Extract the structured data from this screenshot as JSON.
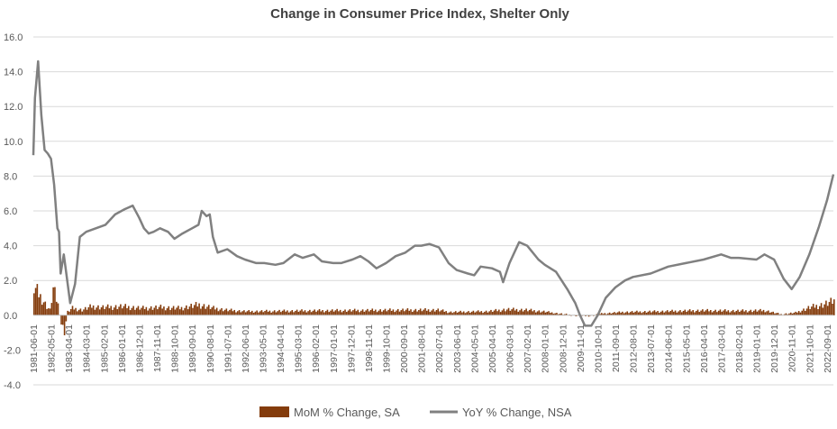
{
  "chart_data": {
    "type": "bar+line",
    "title": "Change in Consumer Price Index, Shelter Only",
    "xlabel": "",
    "ylabel": "",
    "ylim": [
      -4.0,
      16.0
    ],
    "ytick_step": 2.0,
    "y_ticks": [
      "16.0",
      "14.0",
      "12.0",
      "10.0",
      "8.0",
      "6.0",
      "4.0",
      "2.0",
      "0.0",
      "-2.0",
      "-4.0"
    ],
    "x_tick_labels": [
      "1981-06-01",
      "1982-05-01",
      "1983-04-01",
      "1984-03-01",
      "1985-02-01",
      "1986-01-01",
      "1986-12-01",
      "1987-11-01",
      "1988-10-01",
      "1989-09-01",
      "1990-08-01",
      "1991-07-01",
      "1992-06-01",
      "1993-05-01",
      "1994-04-01",
      "1995-03-01",
      "1996-02-01",
      "1997-01-01",
      "1997-12-01",
      "1998-11-01",
      "1999-10-01",
      "2000-09-01",
      "2001-08-01",
      "2002-07-01",
      "2003-06-01",
      "2004-05-01",
      "2005-04-01",
      "2006-03-01",
      "2007-02-01",
      "2008-01-01",
      "2008-12-01",
      "2009-11-01",
      "2010-10-01",
      "2011-09-01",
      "2012-08-01",
      "2013-07-01",
      "2014-06-01",
      "2015-05-01",
      "2016-04-01",
      "2017-03-01",
      "2018-02-01",
      "2019-01-01",
      "2019-12-01",
      "2020-11-01",
      "2021-10-01",
      "2022-09-01"
    ],
    "x_range": [
      "1981-06",
      "2023-01"
    ],
    "grid": true,
    "legend_position": "bottom",
    "series": [
      {
        "name": "MoM % Change, SA",
        "kind": "bar",
        "color": "#843C0C",
        "points": [
          [
            "1981-06",
            1.6
          ],
          [
            "1981-09",
            1.2
          ],
          [
            "1981-12",
            0.8
          ],
          [
            "1982-02",
            0.5
          ],
          [
            "1982-04",
            0.3
          ],
          [
            "1982-06",
            1.5
          ],
          [
            "1982-09",
            0.6
          ],
          [
            "1982-11",
            -0.5
          ],
          [
            "1983-01",
            -0.9
          ],
          [
            "1983-03",
            0.2
          ],
          [
            "1983-06",
            0.4
          ],
          [
            "1983-12",
            0.3
          ],
          [
            "1984-06",
            0.5
          ],
          [
            "1985-01",
            0.45
          ],
          [
            "1986-01",
            0.5
          ],
          [
            "1987-01",
            0.4
          ],
          [
            "1988-01",
            0.45
          ],
          [
            "1989-01",
            0.4
          ],
          [
            "1990-01",
            0.6
          ],
          [
            "1990-10",
            0.4
          ],
          [
            "1991-06",
            0.3
          ],
          [
            "1992-06",
            0.22
          ],
          [
            "1995-01",
            0.25
          ],
          [
            "2001-01",
            0.3
          ],
          [
            "2002-06",
            0.3
          ],
          [
            "2003-01",
            0.18
          ],
          [
            "2005-01",
            0.22
          ],
          [
            "2006-01",
            0.33
          ],
          [
            "2007-01",
            0.3
          ],
          [
            "2008-01",
            0.2
          ],
          [
            "2009-01",
            0.05
          ],
          [
            "2009-11",
            -0.05
          ],
          [
            "2010-06",
            -0.02
          ],
          [
            "2011-01",
            0.1
          ],
          [
            "2012-01",
            0.18
          ],
          [
            "2014-01",
            0.22
          ],
          [
            "2016-01",
            0.27
          ],
          [
            "2018-01",
            0.25
          ],
          [
            "2019-06",
            0.27
          ],
          [
            "2020-04",
            0.05
          ],
          [
            "2021-01",
            0.15
          ],
          [
            "2021-10",
            0.45
          ],
          [
            "2022-06",
            0.6
          ],
          [
            "2023-01",
            0.8
          ]
        ]
      },
      {
        "name": "YoY % Change, NSA",
        "kind": "line",
        "color": "#808080",
        "points": [
          [
            "1981-06",
            9.2
          ],
          [
            "1981-07",
            12.5
          ],
          [
            "1981-09",
            14.6
          ],
          [
            "1981-11",
            11.5
          ],
          [
            "1982-01",
            9.5
          ],
          [
            "1982-03",
            9.3
          ],
          [
            "1982-05",
            9.0
          ],
          [
            "1982-07",
            7.5
          ],
          [
            "1982-09",
            5.0
          ],
          [
            "1982-10",
            4.8
          ],
          [
            "1982-11",
            2.4
          ],
          [
            "1983-01",
            3.5
          ],
          [
            "1983-02",
            2.8
          ],
          [
            "1983-05",
            0.7
          ],
          [
            "1983-08",
            1.8
          ],
          [
            "1983-11",
            4.5
          ],
          [
            "1984-03",
            4.8
          ],
          [
            "1984-09",
            5.0
          ],
          [
            "1985-03",
            5.2
          ],
          [
            "1985-09",
            5.8
          ],
          [
            "1986-03",
            6.1
          ],
          [
            "1986-08",
            6.3
          ],
          [
            "1986-12",
            5.6
          ],
          [
            "1987-03",
            5.0
          ],
          [
            "1987-06",
            4.7
          ],
          [
            "1987-09",
            4.8
          ],
          [
            "1988-01",
            5.0
          ],
          [
            "1988-06",
            4.8
          ],
          [
            "1988-10",
            4.4
          ],
          [
            "1989-03",
            4.7
          ],
          [
            "1989-09",
            5.0
          ],
          [
            "1990-01",
            5.2
          ],
          [
            "1990-03",
            6.0
          ],
          [
            "1990-06",
            5.7
          ],
          [
            "1990-08",
            5.8
          ],
          [
            "1990-10",
            4.5
          ],
          [
            "1991-01",
            3.6
          ],
          [
            "1991-07",
            3.8
          ],
          [
            "1992-01",
            3.4
          ],
          [
            "1992-06",
            3.2
          ],
          [
            "1993-01",
            3.0
          ],
          [
            "1993-06",
            3.0
          ],
          [
            "1994-01",
            2.9
          ],
          [
            "1994-06",
            3.0
          ],
          [
            "1995-01",
            3.5
          ],
          [
            "1995-06",
            3.3
          ],
          [
            "1996-01",
            3.5
          ],
          [
            "1996-06",
            3.1
          ],
          [
            "1997-01",
            3.0
          ],
          [
            "1997-06",
            3.0
          ],
          [
            "1998-01",
            3.2
          ],
          [
            "1998-06",
            3.4
          ],
          [
            "1998-11",
            3.1
          ],
          [
            "1999-04",
            2.7
          ],
          [
            "1999-10",
            3.0
          ],
          [
            "2000-04",
            3.4
          ],
          [
            "2000-10",
            3.6
          ],
          [
            "2001-04",
            4.0
          ],
          [
            "2001-08",
            4.0
          ],
          [
            "2002-01",
            4.1
          ],
          [
            "2002-07",
            3.9
          ],
          [
            "2003-01",
            3.0
          ],
          [
            "2003-06",
            2.6
          ],
          [
            "2004-01",
            2.4
          ],
          [
            "2004-05",
            2.3
          ],
          [
            "2004-09",
            2.8
          ],
          [
            "2005-04",
            2.7
          ],
          [
            "2005-09",
            2.5
          ],
          [
            "2005-11",
            1.9
          ],
          [
            "2006-03",
            3.0
          ],
          [
            "2006-09",
            4.2
          ],
          [
            "2007-02",
            4.0
          ],
          [
            "2007-09",
            3.2
          ],
          [
            "2008-01",
            2.9
          ],
          [
            "2008-08",
            2.5
          ],
          [
            "2009-03",
            1.5
          ],
          [
            "2009-08",
            0.7
          ],
          [
            "2009-11",
            0.0
          ],
          [
            "2010-02",
            -0.6
          ],
          [
            "2010-06",
            -0.6
          ],
          [
            "2010-10",
            0.0
          ],
          [
            "2011-03",
            1.0
          ],
          [
            "2011-09",
            1.6
          ],
          [
            "2012-03",
            2.0
          ],
          [
            "2012-08",
            2.2
          ],
          [
            "2013-07",
            2.4
          ],
          [
            "2014-06",
            2.8
          ],
          [
            "2015-05",
            3.0
          ],
          [
            "2016-04",
            3.2
          ],
          [
            "2017-03",
            3.5
          ],
          [
            "2017-09",
            3.3
          ],
          [
            "2018-02",
            3.3
          ],
          [
            "2019-01",
            3.2
          ],
          [
            "2019-06",
            3.5
          ],
          [
            "2019-12",
            3.2
          ],
          [
            "2020-06",
            2.1
          ],
          [
            "2020-11",
            1.5
          ],
          [
            "2021-04",
            2.2
          ],
          [
            "2021-10",
            3.5
          ],
          [
            "2022-04",
            5.1
          ],
          [
            "2022-09",
            6.6
          ],
          [
            "2023-01",
            8.1
          ]
        ]
      }
    ]
  }
}
